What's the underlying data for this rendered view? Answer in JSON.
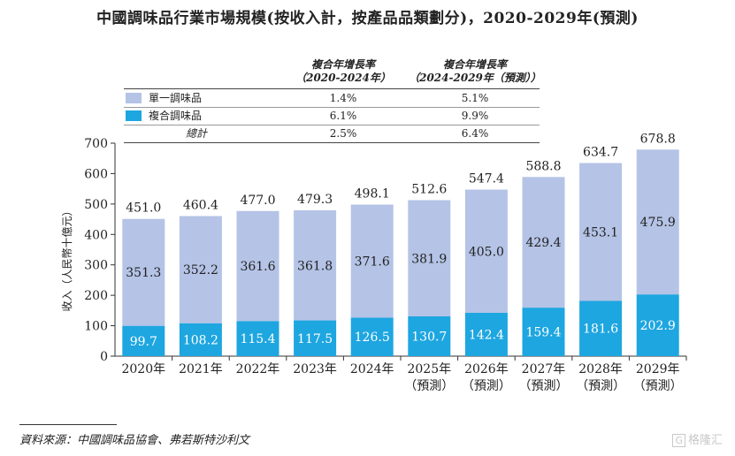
{
  "title": "中國調味品行業市場規模(按收入計，按產品品類劃分)，2020-2029年(預測)",
  "cagr_table": {
    "col1_header_line1": "複合年增長率",
    "col1_header_line2": "（2020-2024年）",
    "col2_header_line1": "複合年增長率",
    "col2_header_line2": "（2024-2029年（預測））",
    "rows": [
      {
        "label": "單一調味品",
        "cagr1": "1.4%",
        "cagr2": "5.1%",
        "color": "#b4c3e6"
      },
      {
        "label": "複合調味品",
        "cagr1": "6.1%",
        "cagr2": "9.9%",
        "color": "#1ea6e0"
      },
      {
        "label": "總計",
        "cagr1": "2.5%",
        "cagr2": "6.4%"
      }
    ]
  },
  "chart_data": {
    "type": "bar",
    "stacked": true,
    "categories": [
      "2020年",
      "2021年",
      "2022年",
      "2023年",
      "2024年",
      "2025年",
      "2026年",
      "2027年",
      "2028年",
      "2029年"
    ],
    "category_sublabels": [
      "",
      "",
      "",
      "",
      "",
      "（預測）",
      "（預測）",
      "（預測）",
      "（預測）",
      "（預測）"
    ],
    "series": [
      {
        "name": "複合調味品",
        "color": "#1ea6e0",
        "values": [
          99.7,
          108.2,
          115.4,
          117.5,
          126.5,
          130.7,
          142.4,
          159.4,
          181.6,
          202.9
        ]
      },
      {
        "name": "單一調味品",
        "color": "#b4c3e6",
        "values": [
          351.3,
          352.2,
          361.6,
          361.8,
          371.6,
          381.9,
          405.0,
          429.4,
          453.1,
          475.9
        ]
      }
    ],
    "totals": [
      451.0,
      460.4,
      477.0,
      479.3,
      498.1,
      512.6,
      547.4,
      588.8,
      634.7,
      678.8
    ],
    "ylabel": "收入（人民幣十億元）",
    "ylim": [
      0,
      700
    ],
    "yticks": [
      0,
      100,
      200,
      300,
      400,
      500,
      600,
      700
    ],
    "grid": false
  },
  "source": "資料來源：中國調味品協會、弗若斯特沙利文",
  "watermark": {
    "icon": "G",
    "text": "格隆汇"
  }
}
